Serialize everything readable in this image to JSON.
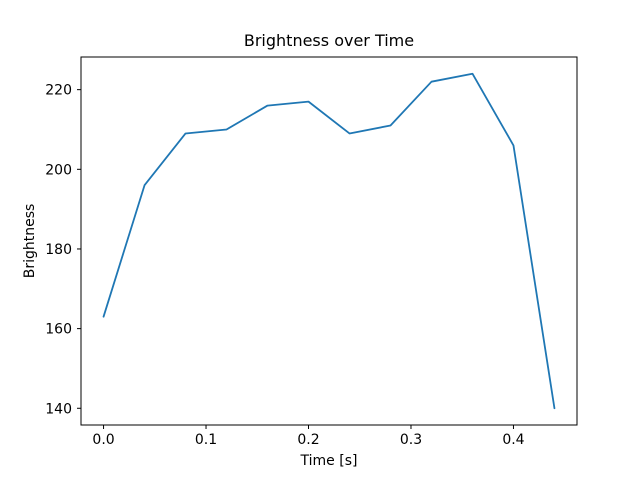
{
  "figure": {
    "background": "#ffffff"
  },
  "chart_data": {
    "type": "line",
    "title": "Brightness over Time",
    "xlabel": "Time [s]",
    "ylabel": "Brightness",
    "x": [
      0.0,
      0.04,
      0.08,
      0.12,
      0.16,
      0.2,
      0.24,
      0.28,
      0.32,
      0.36,
      0.4,
      0.44
    ],
    "values": [
      163,
      196,
      209,
      210,
      216,
      217,
      209,
      211,
      222,
      224,
      206,
      140
    ],
    "xlim": [
      -0.022,
      0.462
    ],
    "ylim": [
      135.8,
      228.2
    ],
    "xticks": [
      {
        "v": 0.0,
        "label": "0.0"
      },
      {
        "v": 0.1,
        "label": "0.1"
      },
      {
        "v": 0.2,
        "label": "0.2"
      },
      {
        "v": 0.3,
        "label": "0.3"
      },
      {
        "v": 0.4,
        "label": "0.4"
      }
    ],
    "yticks": [
      {
        "v": 140,
        "label": "140"
      },
      {
        "v": 160,
        "label": "160"
      },
      {
        "v": 180,
        "label": "180"
      },
      {
        "v": 200,
        "label": "200"
      },
      {
        "v": 220,
        "label": "220"
      }
    ],
    "line_color": "#1f77b4",
    "spine_color": "#000000",
    "grid": false,
    "legend_position": "none"
  }
}
